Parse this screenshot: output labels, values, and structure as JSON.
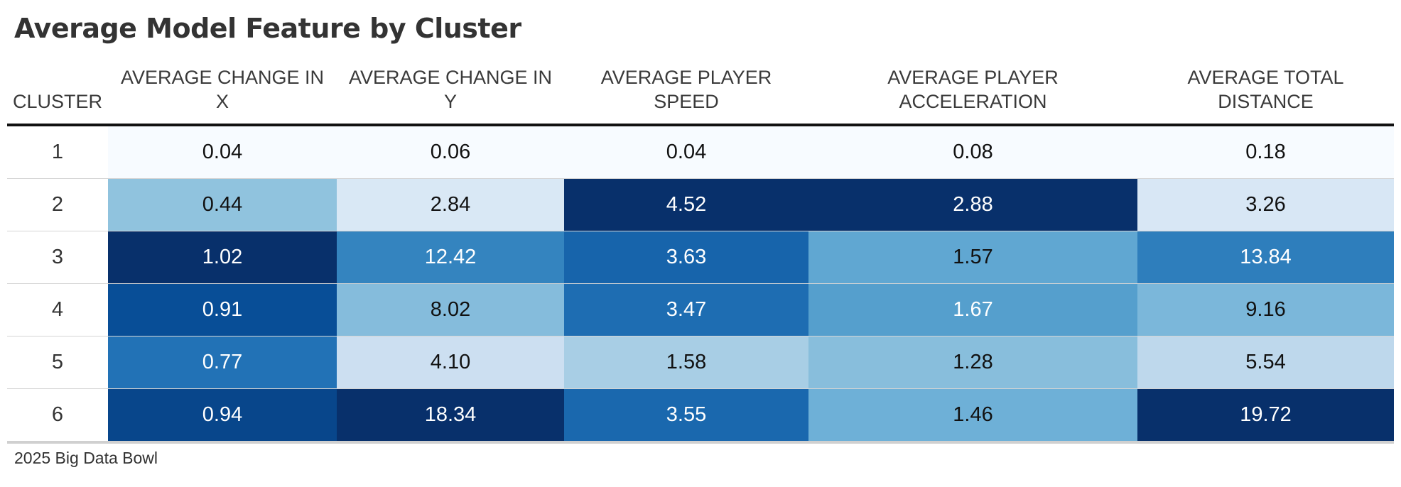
{
  "title": "Average Model Feature by Cluster",
  "footer": "2025 Big Data Bowl",
  "columns": [
    "CLUSTER",
    "AVERAGE CHANGE IN X",
    "AVERAGE CHANGE IN Y",
    "AVERAGE PLAYER SPEED",
    "AVERAGE PLAYER ACCELERATION",
    "AVERAGE TOTAL DISTANCE"
  ],
  "chart_data": {
    "type": "table",
    "title": "Average Model Feature by Cluster",
    "columns": [
      "CLUSTER",
      "AVERAGE CHANGE IN X",
      "AVERAGE CHANGE IN Y",
      "AVERAGE PLAYER SPEED",
      "AVERAGE PLAYER ACCELERATION",
      "AVERAGE TOTAL DISTANCE"
    ],
    "rows": [
      [
        "1",
        "0.04",
        "0.06",
        "0.04",
        "0.08",
        "0.18"
      ],
      [
        "2",
        "0.44",
        "2.84",
        "4.52",
        "2.88",
        "3.26"
      ],
      [
        "3",
        "1.02",
        "12.42",
        "3.63",
        "1.57",
        "13.84"
      ],
      [
        "4",
        "0.91",
        "8.02",
        "3.47",
        "1.67",
        "9.16"
      ],
      [
        "5",
        "0.77",
        "4.10",
        "1.58",
        "1.28",
        "5.54"
      ],
      [
        "6",
        "0.94",
        "18.34",
        "3.55",
        "1.46",
        "19.72"
      ]
    ],
    "color_scale": {
      "type": "per-column sequential",
      "low_color": "#f7fbff",
      "high_color": "#08306b",
      "palette": [
        "#f7fbff",
        "#deebf7",
        "#c6dbef",
        "#9ecae1",
        "#6baed6",
        "#4292c6",
        "#2171b5",
        "#08519c",
        "#08306b"
      ],
      "light_text_color": "#ffffff",
      "dark_text_color": "#111111"
    },
    "source": "2025 Big Data Bowl"
  }
}
